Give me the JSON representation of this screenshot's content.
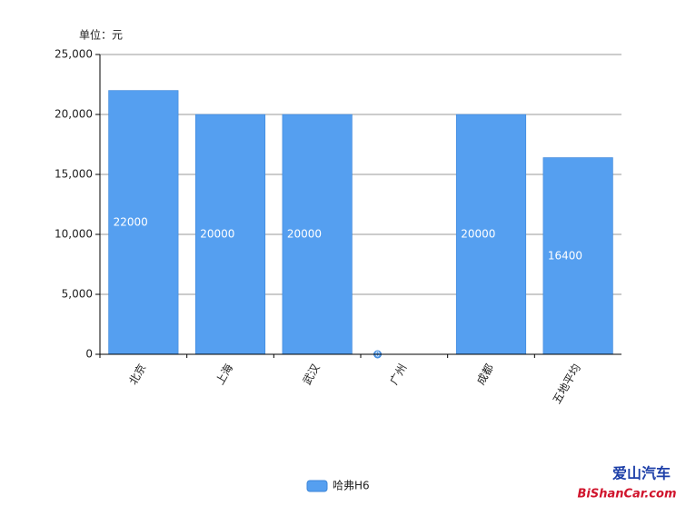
{
  "chart_data": {
    "type": "bar",
    "unit_label": "单位：元",
    "categories": [
      "北京",
      "上海",
      "武汉",
      "广州",
      "成都",
      "五地平均"
    ],
    "series": [
      {
        "name": "哈弗H6",
        "color": "#559ff0",
        "values": [
          22000,
          20000,
          20000,
          0,
          20000,
          16400
        ]
      }
    ],
    "ylim": [
      0,
      25000
    ],
    "yticks": [
      0,
      {
        "value": 5000,
        "label": "5,000"
      },
      {
        "value": 10000,
        "label": "10,000"
      },
      {
        "value": 15000,
        "label": "15,000"
      },
      {
        "value": 20000,
        "label": "20,000"
      },
      {
        "value": 25000,
        "label": "25,000"
      }
    ],
    "grid": true,
    "legend": "bottom",
    "watermark": [
      "爱山汽车",
      "BiShanCar.com"
    ]
  }
}
